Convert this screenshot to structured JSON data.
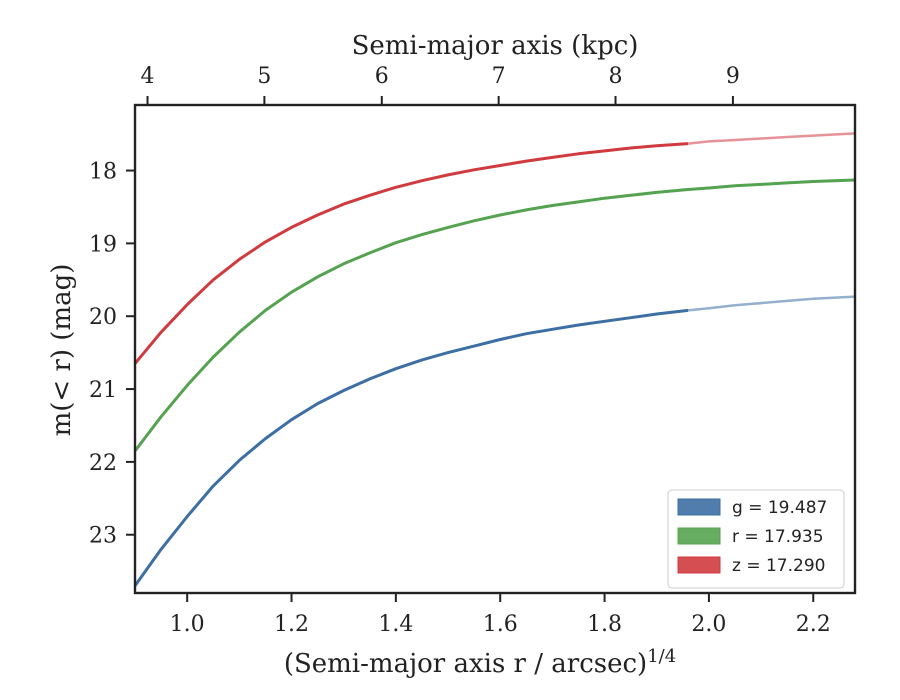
{
  "chart_data": {
    "type": "line",
    "title": "",
    "xlabel": "(Semi-major axis r / arcsec)",
    "xlabel_sup": "1/4",
    "x2label": "Semi-major axis (kpc)",
    "ylabel": "m(< r) (mag)",
    "xlim": [
      0.9,
      2.28
    ],
    "ylim": [
      23.8,
      17.1
    ],
    "y_inverted": true,
    "x_ticks": [
      "1.0",
      "1.2",
      "1.4",
      "1.6",
      "1.8",
      "2.0",
      "2.2"
    ],
    "y_ticks": [
      "18",
      "19",
      "20",
      "21",
      "22",
      "23"
    ],
    "x2_ticks": [
      "4",
      "5",
      "6",
      "7",
      "8",
      "9"
    ],
    "x2_tick_positions_data": [
      0.924,
      1.148,
      1.373,
      1.597,
      1.821,
      2.046
    ],
    "grid": false,
    "legend_position": "lower-right",
    "series": [
      {
        "name": "g = 19.487",
        "color": "#3d6fa3",
        "x": [
          0.9,
          0.95,
          1.0,
          1.05,
          1.1,
          1.15,
          1.2,
          1.25,
          1.3,
          1.35,
          1.4,
          1.45,
          1.5,
          1.55,
          1.6,
          1.65,
          1.7,
          1.75,
          1.8,
          1.85,
          1.9,
          1.96,
          2.0,
          2.05,
          2.1,
          2.15,
          2.2,
          2.28
        ],
        "values": [
          23.7,
          23.2,
          22.75,
          22.33,
          21.98,
          21.68,
          21.42,
          21.2,
          21.02,
          20.86,
          20.72,
          20.6,
          20.5,
          20.41,
          20.32,
          20.24,
          20.18,
          20.12,
          20.07,
          20.02,
          19.97,
          19.92,
          19.89,
          19.85,
          19.82,
          19.79,
          19.76,
          19.73
        ],
        "solid_until_x": 1.96
      },
      {
        "name": "r = 17.935",
        "color": "#55a350",
        "x": [
          0.9,
          0.95,
          1.0,
          1.05,
          1.1,
          1.15,
          1.2,
          1.25,
          1.3,
          1.35,
          1.4,
          1.45,
          1.5,
          1.55,
          1.6,
          1.65,
          1.7,
          1.75,
          1.8,
          1.85,
          1.9,
          1.96,
          2.0,
          2.05,
          2.1,
          2.15,
          2.2,
          2.28
        ],
        "values": [
          21.85,
          21.38,
          20.95,
          20.56,
          20.22,
          19.92,
          19.67,
          19.46,
          19.28,
          19.13,
          18.99,
          18.88,
          18.78,
          18.69,
          18.61,
          18.54,
          18.48,
          18.43,
          18.38,
          18.34,
          18.3,
          18.26,
          18.24,
          18.21,
          18.19,
          18.17,
          18.15,
          18.13
        ],
        "solid_until_x": 2.28
      },
      {
        "name": "z = 17.290",
        "color": "#d03b3f",
        "x": [
          0.9,
          0.95,
          1.0,
          1.05,
          1.1,
          1.15,
          1.2,
          1.25,
          1.3,
          1.35,
          1.4,
          1.45,
          1.5,
          1.55,
          1.6,
          1.65,
          1.7,
          1.75,
          1.8,
          1.85,
          1.9,
          1.96,
          2.0,
          2.05,
          2.1,
          2.15,
          2.2,
          2.28
        ],
        "values": [
          20.65,
          20.22,
          19.84,
          19.5,
          19.22,
          18.98,
          18.78,
          18.61,
          18.46,
          18.34,
          18.23,
          18.14,
          18.06,
          17.99,
          17.93,
          17.87,
          17.82,
          17.77,
          17.73,
          17.69,
          17.66,
          17.63,
          17.6,
          17.58,
          17.56,
          17.54,
          17.52,
          17.49
        ],
        "solid_until_x": 1.96
      }
    ]
  }
}
